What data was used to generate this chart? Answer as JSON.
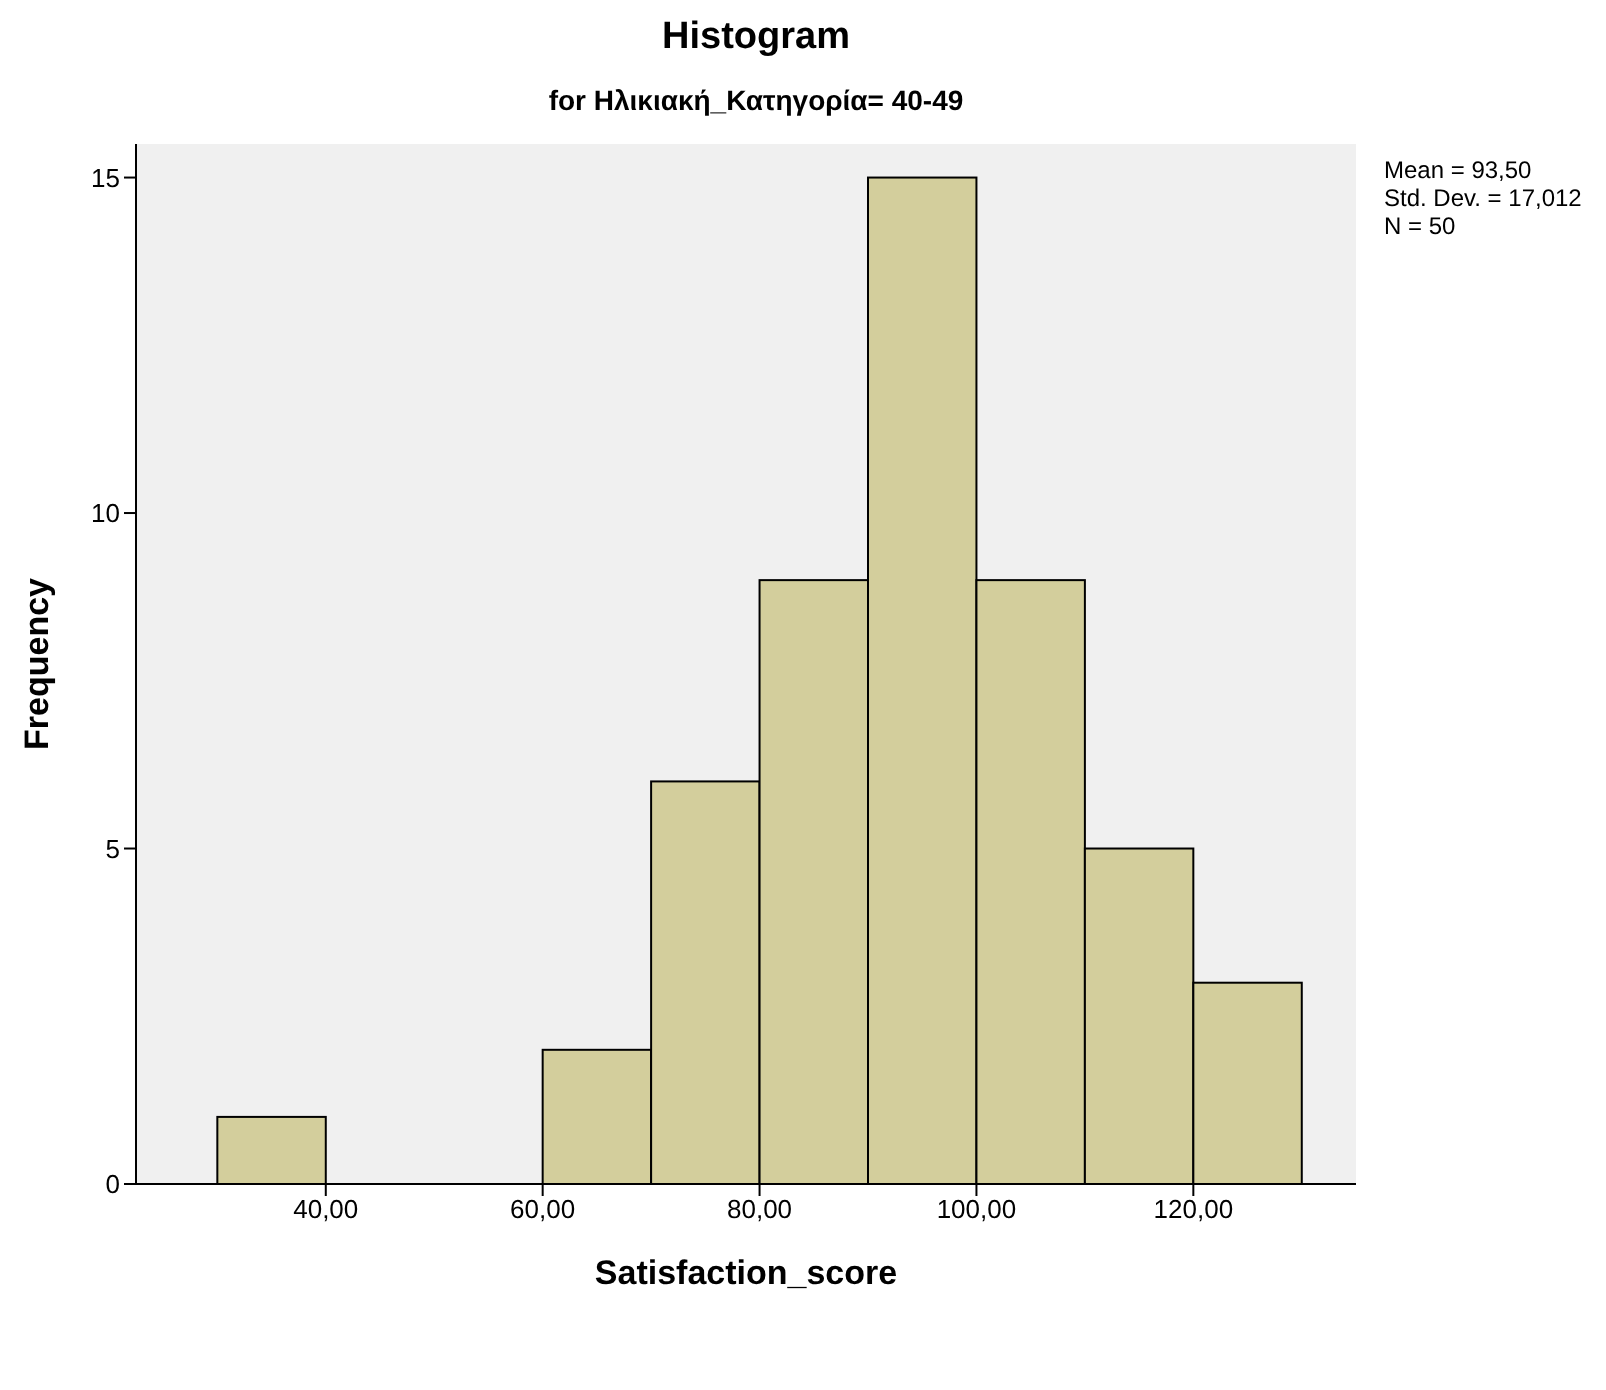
{
  "chart_data": {
    "type": "histogram",
    "title": "Histogram",
    "subtitle": "for Ηλικιακή_Κατηγορία= 40-49",
    "xlabel": "Satisfaction_score",
    "ylabel": "Frequency",
    "bins": [
      30,
      40,
      50,
      60,
      70,
      80,
      90,
      100,
      110,
      120,
      130
    ],
    "values": [
      1,
      0,
      0,
      2,
      6,
      9,
      15,
      9,
      5,
      3
    ],
    "color": "#d3ce9c",
    "xlim": [
      22.5,
      135
    ],
    "xticks": [
      {
        "value": 40,
        "label": "40,00"
      },
      {
        "value": 60,
        "label": "60,00"
      },
      {
        "value": 80,
        "label": "80,00"
      },
      {
        "value": 100,
        "label": "100,00"
      },
      {
        "value": 120,
        "label": "120,00"
      }
    ],
    "ylim": [
      0,
      15.5
    ],
    "yticks": [
      0,
      5,
      10,
      15
    ],
    "annotations": [
      "Mean = 93,50",
      "Std. Dev. = 17,012",
      "N = 50"
    ]
  }
}
